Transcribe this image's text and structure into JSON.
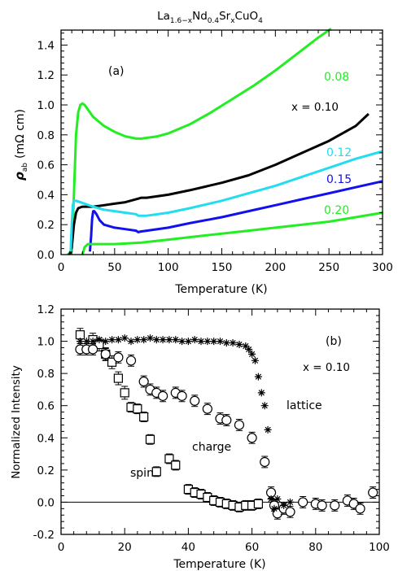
{
  "figure": {
    "title_parts": [
      "La",
      "1.6−x",
      "Nd",
      "0.4",
      "Sr",
      "x",
      "CuO",
      "4"
    ]
  },
  "chart_data": [
    {
      "type": "line",
      "panel_label": "(a)",
      "xlabel": "Temperature (K)",
      "ylabel_main": "ρ",
      "ylabel_sub": "ab",
      "ylabel_units": "(mΩ cm)",
      "xlim": [
        0,
        300
      ],
      "ylim": [
        0,
        1.5
      ],
      "xticks": [
        0,
        50,
        100,
        150,
        200,
        250,
        300
      ],
      "xtick_labels": [
        "0",
        "50",
        "100",
        "150",
        "200",
        "250",
        "300"
      ],
      "yticks": [
        0,
        0.2,
        0.4,
        0.6,
        0.8,
        1.0,
        1.2,
        1.4
      ],
      "ytick_labels": [
        "0.0",
        "0.2",
        "0.4",
        "0.6",
        "0.8",
        "1.0",
        "1.2",
        "1.4"
      ],
      "grid": false,
      "series": [
        {
          "name": "0.08",
          "color": "#22ee22",
          "x": [
            6,
            10,
            12,
            14,
            16,
            18,
            20,
            22,
            25,
            30,
            40,
            50,
            60,
            70,
            75,
            80,
            90,
            100,
            120,
            140,
            160,
            180,
            200,
            220,
            240,
            252
          ],
          "y": [
            0,
            0.02,
            0.4,
            0.8,
            0.95,
            1.0,
            1.01,
            1.0,
            0.97,
            0.92,
            0.86,
            0.82,
            0.79,
            0.775,
            0.775,
            0.78,
            0.79,
            0.81,
            0.87,
            0.95,
            1.04,
            1.13,
            1.23,
            1.34,
            1.45,
            1.51
          ]
        },
        {
          "name": "0.10",
          "color": "#000000",
          "x": [
            8,
            10,
            12,
            14,
            16,
            18,
            20,
            25,
            30,
            40,
            50,
            60,
            70,
            75,
            80,
            100,
            120,
            150,
            175,
            200,
            225,
            250,
            275,
            287
          ],
          "y": [
            0,
            0.05,
            0.2,
            0.28,
            0.31,
            0.315,
            0.32,
            0.32,
            0.32,
            0.33,
            0.34,
            0.35,
            0.37,
            0.38,
            0.38,
            0.4,
            0.43,
            0.48,
            0.53,
            0.6,
            0.68,
            0.76,
            0.86,
            0.94
          ]
        },
        {
          "name": "0.12",
          "color": "#22ddee",
          "x": [
            9,
            10,
            11,
            12,
            14,
            18,
            22,
            26,
            30,
            40,
            50,
            60,
            70,
            72,
            75,
            80,
            100,
            120,
            150,
            175,
            200,
            225,
            250,
            275,
            300
          ],
          "y": [
            0.02,
            0.2,
            0.33,
            0.36,
            0.36,
            0.35,
            0.34,
            0.33,
            0.32,
            0.3,
            0.29,
            0.28,
            0.27,
            0.26,
            0.26,
            0.26,
            0.28,
            0.31,
            0.36,
            0.41,
            0.46,
            0.52,
            0.58,
            0.64,
            0.69
          ]
        },
        {
          "name": "0.15",
          "color": "#1111ee",
          "x": [
            27,
            28,
            29,
            30,
            31,
            33,
            36,
            40,
            50,
            60,
            70,
            72,
            75,
            80,
            100,
            120,
            150,
            175,
            200,
            225,
            250,
            275,
            300
          ],
          "y": [
            0.02,
            0.12,
            0.24,
            0.29,
            0.29,
            0.27,
            0.23,
            0.2,
            0.18,
            0.17,
            0.16,
            0.15,
            0.155,
            0.16,
            0.18,
            0.21,
            0.25,
            0.29,
            0.33,
            0.37,
            0.41,
            0.45,
            0.49
          ]
        },
        {
          "name": "0.20",
          "color": "#22ee22",
          "x": [
            20,
            22,
            25,
            30,
            50,
            75,
            100,
            125,
            150,
            175,
            200,
            225,
            250,
            275,
            300
          ],
          "y": [
            0.0,
            0.05,
            0.07,
            0.07,
            0.07,
            0.08,
            0.1,
            0.12,
            0.14,
            0.16,
            0.18,
            0.2,
            0.22,
            0.25,
            0.28
          ]
        }
      ],
      "labels": {
        "x_eq": "x  =  0.10",
        "l008": "0.08",
        "l012": "0.12",
        "l015": "0.15",
        "l020": "0.20"
      }
    },
    {
      "type": "scatter",
      "panel_label": "(b)",
      "xlabel": "Temperature (K)",
      "ylabel": "Normalized Intensity",
      "xlim": [
        0,
        100
      ],
      "ylim": [
        -0.2,
        1.2
      ],
      "xticks": [
        0,
        20,
        40,
        60,
        80,
        100
      ],
      "xtick_labels": [
        "0",
        "20",
        "40",
        "60",
        "80",
        "100"
      ],
      "yticks": [
        -0.2,
        0.0,
        0.2,
        0.4,
        0.6,
        0.8,
        1.0,
        1.2
      ],
      "ytick_labels": [
        "-0.2",
        "0.0",
        "0.2",
        "0.4",
        "0.6",
        "0.8",
        "1.0",
        "1.2"
      ],
      "grid": false,
      "zero_line": true,
      "annotation": "x  =  0.10",
      "series": [
        {
          "name": "spin",
          "marker": "square",
          "x": [
            6,
            10,
            12,
            14,
            16,
            18,
            20,
            22,
            24,
            26,
            28,
            30,
            34,
            36,
            40,
            42,
            44,
            46,
            48,
            50,
            52,
            54,
            56,
            58,
            60,
            62
          ],
          "y": [
            1.04,
            1.01,
            0.98,
            0.92,
            0.87,
            0.77,
            0.68,
            0.59,
            0.58,
            0.53,
            0.39,
            0.19,
            0.27,
            0.23,
            0.08,
            0.06,
            0.05,
            0.03,
            0.01,
            0.0,
            -0.01,
            -0.02,
            -0.03,
            -0.02,
            -0.02,
            -0.01
          ],
          "err": [
            0.04,
            0.04,
            0.04,
            0.04,
            0.04,
            0.04,
            0.04,
            0.03,
            0.03,
            0.03,
            0.03,
            0.03,
            0.03,
            0.03,
            0.03,
            0.03,
            0.03,
            0.03,
            0.03,
            0.03,
            0.03,
            0.03,
            0.03,
            0.03,
            0.03,
            0.03
          ]
        },
        {
          "name": "charge",
          "marker": "circle",
          "x": [
            6,
            8,
            10,
            14,
            18,
            22,
            26,
            28,
            30,
            32,
            36,
            38,
            42,
            46,
            50,
            52,
            56,
            60,
            64,
            66,
            67,
            68,
            70,
            72,
            76,
            80,
            82,
            86,
            90,
            92,
            94,
            98
          ],
          "y": [
            0.95,
            0.95,
            0.95,
            0.92,
            0.9,
            0.88,
            0.75,
            0.7,
            0.68,
            0.66,
            0.68,
            0.66,
            0.63,
            0.58,
            0.52,
            0.51,
            0.48,
            0.4,
            0.25,
            0.06,
            -0.02,
            -0.07,
            -0.04,
            -0.06,
            0.0,
            -0.01,
            -0.02,
            -0.02,
            0.01,
            -0.01,
            -0.04,
            0.06
          ]
        },
        {
          "name": "lattice",
          "marker": "star",
          "x": [
            6,
            8,
            10,
            12,
            14,
            16,
            18,
            20,
            22,
            24,
            26,
            28,
            30,
            32,
            34,
            36,
            38,
            40,
            42,
            44,
            46,
            48,
            50,
            52,
            54,
            56,
            58,
            59,
            60,
            61,
            62,
            63,
            64,
            65,
            66,
            67,
            68,
            70,
            72
          ],
          "y": [
            1.0,
            1.0,
            1.0,
            1.01,
            1.0,
            1.01,
            1.01,
            1.02,
            1.0,
            1.01,
            1.01,
            1.02,
            1.01,
            1.01,
            1.01,
            1.01,
            1.0,
            1.0,
            1.01,
            1.0,
            1.0,
            1.0,
            1.0,
            0.99,
            0.99,
            0.98,
            0.97,
            0.95,
            0.92,
            0.88,
            0.78,
            0.68,
            0.6,
            0.45,
            0.02,
            -0.04,
            0.02,
            -0.02,
            0.0
          ]
        }
      ],
      "labels": {
        "spin": "spin",
        "charge": "charge",
        "lattice": "lattice"
      }
    }
  ]
}
